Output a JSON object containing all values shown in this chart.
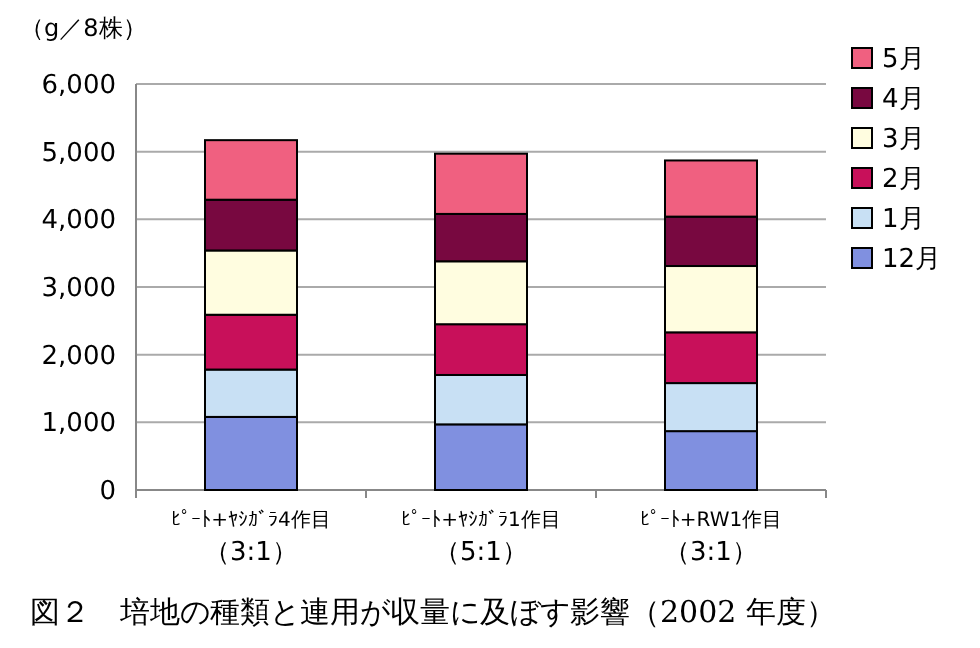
{
  "chart_data": {
    "type": "bar",
    "stacked": true,
    "title": "図２　培地の種類と連用が収量に及ぼす影響（2002 年度）",
    "ylabel": "（g／8株）",
    "categories": [
      "ﾋﾟｰﾄ+ﾔｼｶﾞﾗ4作目（3:1）",
      "ﾋﾟｰﾄ+ﾔｼｶﾞﾗ1作目（5:1）",
      "ﾋﾟｰﾄ+RW1作目（3:1）"
    ],
    "series": [
      {
        "name": "12月",
        "color": "#8090e0",
        "values": [
          1080,
          970,
          870
        ]
      },
      {
        "name": "1月",
        "color": "#c8e0f4",
        "values": [
          700,
          730,
          710
        ]
      },
      {
        "name": "2月",
        "color": "#c8105a",
        "values": [
          810,
          750,
          750
        ]
      },
      {
        "name": "3月",
        "color": "#fffde0",
        "values": [
          950,
          930,
          980
        ]
      },
      {
        "name": "4月",
        "color": "#780840",
        "values": [
          750,
          700,
          730
        ]
      },
      {
        "name": "5月",
        "color": "#f06080",
        "values": [
          880,
          890,
          830
        ]
      }
    ],
    "ylim": [
      0,
      6000
    ],
    "yticks": [
      {
        "value": 0,
        "label": "0"
      },
      {
        "value": 1000,
        "label": "1,000"
      },
      {
        "value": 2000,
        "label": "2,000"
      },
      {
        "value": 3000,
        "label": "3,000"
      },
      {
        "value": 4000,
        "label": "4,000"
      },
      {
        "value": 5000,
        "label": "5,000"
      },
      {
        "value": 6000,
        "label": "6,000"
      }
    ],
    "grid": "y",
    "legend": "right"
  }
}
